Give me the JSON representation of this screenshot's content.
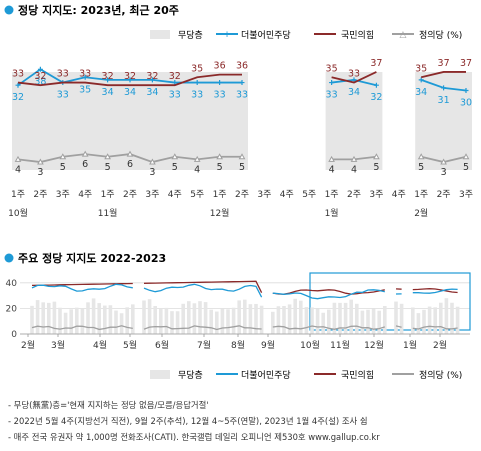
{
  "chart1": {
    "title": "정당 지지도: 2023년, 최근 20주",
    "legend": [
      "무당층",
      "더불어민주당",
      "국민의힘",
      "정의당 (%)"
    ],
    "week_labels": [
      "1주",
      "2주",
      "3주",
      "4주",
      "1주",
      "2주",
      "3주",
      "4주",
      "5주",
      "1주",
      "2주",
      "3주",
      "4주",
      "5주",
      "1주",
      "2주",
      "3주",
      "4주",
      "1주",
      "2주",
      "3주"
    ],
    "month_labels": [
      "10월",
      "11월",
      "12월",
      "1월",
      "2월"
    ]
  },
  "chart2": {
    "title": "주요 정당 지지도 2022-2023",
    "y_ticks": [
      "40",
      "20",
      "0"
    ],
    "month_labels": [
      "2월",
      "3월",
      "4월",
      "5월",
      "6월",
      "7월",
      "8월",
      "9월",
      "10월",
      "11월",
      "12월",
      "1월",
      "2월"
    ],
    "legend": [
      "무당층",
      "더불어민주당",
      "국민의힘",
      "정의당 (%)"
    ]
  },
  "footnotes": [
    "- 무당(無黨)층='현재 지지하는 정당 없음/모름/응답거절'",
    "- 2022년 5월 4주(지방선거 직전), 9월 2주(추석), 12월 4~5주(연말), 2023년 1월 4주(설) 조사 쉼",
    "- 매주 전국 유권자 약 1,000명 전화조사(CATI). 한국갤럽 데일리 오피니언 제530호 www.gallup.co.kr"
  ],
  "colors": {
    "dpk": "#1e9ad6",
    "ppp": "#8b2a2a",
    "justice": "#a0a0a0",
    "indep": "#e6e6e6"
  },
  "chart_data": [
    {
      "type": "line",
      "title": "정당 지지도: 2023년, 최근 20주",
      "categories": [
        "10월 1주",
        "10월 2주",
        "10월 3주",
        "10월 4주",
        "11월 1주",
        "11월 2주",
        "11월 3주",
        "11월 4주",
        "11월 5주",
        "12월 1주",
        "12월 2주",
        "12월 3주",
        "12월 4주",
        "12월 5주",
        "1월 1주",
        "1월 2주",
        "1월 3주",
        "1월 4주",
        "2월 1주",
        "2월 2주",
        "2월 3주"
      ],
      "series": [
        {
          "name": "더불어민주당",
          "values": [
            32,
            38,
            33,
            35,
            34,
            34,
            34,
            33,
            33,
            33,
            33,
            null,
            null,
            null,
            33,
            34,
            32,
            null,
            34,
            31,
            30
          ]
        },
        {
          "name": "국민의힘",
          "values": [
            33,
            32,
            33,
            33,
            32,
            32,
            32,
            32,
            35,
            36,
            36,
            null,
            null,
            null,
            35,
            33,
            37,
            null,
            35,
            37,
            37
          ]
        },
        {
          "name": "정의당",
          "values": [
            4,
            3,
            5,
            6,
            5,
            6,
            3,
            5,
            4,
            5,
            5,
            null,
            null,
            null,
            4,
            4,
            5,
            null,
            5,
            3,
            5
          ]
        },
        {
          "name": "무당층",
          "values": [
            null,
            null,
            null,
            null,
            null,
            null,
            null,
            null,
            null,
            null,
            null,
            null,
            null,
            null,
            null,
            null,
            null,
            null,
            null,
            null,
            null
          ]
        }
      ]
    }
  ]
}
